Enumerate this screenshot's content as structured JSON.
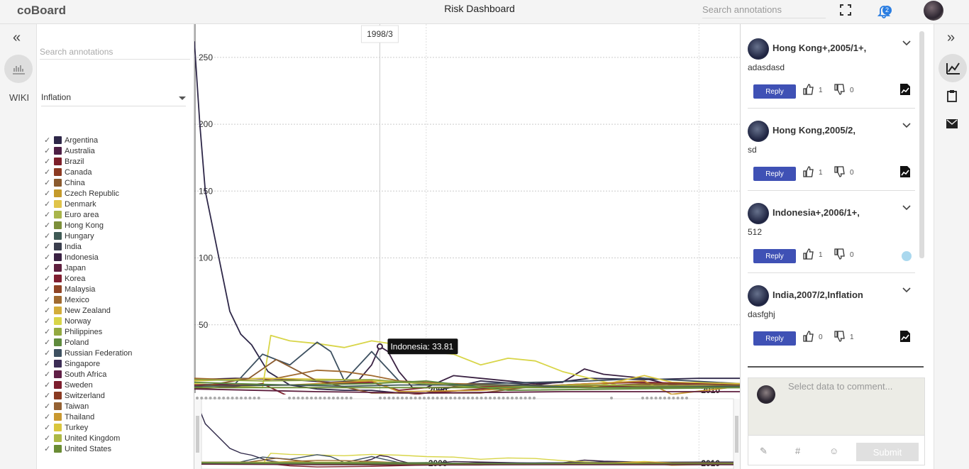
{
  "app": {
    "logo": "coBoard",
    "title": "Risk Dashboard"
  },
  "topbar": {
    "search_placeholder": "Search annotations",
    "notification_count": "2"
  },
  "left_rail": {
    "collapse_label": "«",
    "wiki_label": "WIKI"
  },
  "filter_panel": {
    "search_placeholder": "Search annotations",
    "selected_indicator": "Inflation",
    "countries": [
      {
        "name": "Argentina",
        "color": "#2e2748"
      },
      {
        "name": "Australia",
        "color": "#4e1f45"
      },
      {
        "name": "Brazil",
        "color": "#7d1f2a"
      },
      {
        "name": "Canada",
        "color": "#8c3a22"
      },
      {
        "name": "China",
        "color": "#8a5a2e"
      },
      {
        "name": "Czech Republic",
        "color": "#c49a2b"
      },
      {
        "name": "Denmark",
        "color": "#e0c44a"
      },
      {
        "name": "Euro area",
        "color": "#a9b54a"
      },
      {
        "name": "Hong Kong",
        "color": "#7c8f3a"
      },
      {
        "name": "Hungary",
        "color": "#3f5a55"
      },
      {
        "name": "India",
        "color": "#3a3e4d"
      },
      {
        "name": "Indonesia",
        "color": "#3a2142"
      },
      {
        "name": "Japan",
        "color": "#5e1f3e"
      },
      {
        "name": "Korea",
        "color": "#801e30"
      },
      {
        "name": "Malaysia",
        "color": "#8f4425"
      },
      {
        "name": "Mexico",
        "color": "#a06a30"
      },
      {
        "name": "New Zealand",
        "color": "#d3ad3a"
      },
      {
        "name": "Norway",
        "color": "#d8d548"
      },
      {
        "name": "Philippines",
        "color": "#93a940"
      },
      {
        "name": "Poland",
        "color": "#5f8a3c"
      },
      {
        "name": "Russian Federation",
        "color": "#3d5060"
      },
      {
        "name": "Singapore",
        "color": "#3c2d55"
      },
      {
        "name": "South Africa",
        "color": "#601f46"
      },
      {
        "name": "Sweden",
        "color": "#7d1e2e"
      },
      {
        "name": "Switzerland",
        "color": "#8a3a22"
      },
      {
        "name": "Taiwan",
        "color": "#946132"
      },
      {
        "name": "Thailand",
        "color": "#c9982f"
      },
      {
        "name": "Turkey",
        "color": "#d9c63d"
      },
      {
        "name": "United Kingdom",
        "color": "#acb845"
      },
      {
        "name": "United States",
        "color": "#6a8c34"
      }
    ]
  },
  "chart_data": {
    "type": "line",
    "y_ticks": [
      "50",
      "100",
      "150",
      "200",
      "250"
    ],
    "x_ticks": [
      "2000",
      "2010"
    ],
    "ylim": [
      0,
      260
    ],
    "xlim": [
      1991.5,
      2011.5
    ],
    "grid": true,
    "hover_label": "1998/3",
    "tooltip": "Indonesia: 33.81",
    "series": [
      {
        "name": "Argentina",
        "color": "#2e2748",
        "x": [
          1991.5,
          1991.7,
          1991.9,
          1992.1,
          1992.4,
          1992.8,
          1993.2,
          1993.6,
          1994.2,
          1995,
          1996,
          1997,
          1998,
          1999,
          2000,
          2002,
          2004,
          2006,
          2008,
          2010,
          2011.5
        ],
        "y": [
          262,
          200,
          150,
          130,
          100,
          60,
          43,
          35,
          15,
          5,
          2,
          1,
          1,
          -1,
          -1,
          8,
          5,
          10,
          9,
          10,
          10
        ]
      },
      {
        "name": "Indonesia",
        "color": "#3a2142",
        "x": [
          1991.5,
          1993,
          1995,
          1996.5,
          1997.5,
          1998,
          1998.3,
          1998.6,
          1999,
          1999.5,
          2000,
          2001,
          2002,
          2004,
          2005,
          2005.8,
          2006.5,
          2008,
          2009,
          2010,
          2011.5
        ],
        "y": [
          9,
          10,
          9,
          7,
          8,
          20,
          33.81,
          30,
          15,
          3,
          3,
          12,
          10,
          6,
          7,
          17,
          13,
          10,
          5,
          4,
          5
        ]
      },
      {
        "name": "Norway",
        "color": "#d8d548",
        "x": [
          1991.5,
          1993,
          1994,
          1994.3,
          1995,
          1996,
          1997,
          1998,
          1999,
          2000,
          2001,
          2002,
          2003,
          2004,
          2005,
          2006,
          2007,
          2008,
          2010,
          2011.5
        ],
        "y": [
          6,
          4,
          3,
          42,
          38,
          36,
          33,
          38,
          35,
          30,
          28,
          20,
          25,
          23,
          15,
          10,
          5,
          5,
          7,
          5
        ]
      },
      {
        "name": "Russian Federation",
        "color": "#3d5060",
        "x": [
          1991.5,
          1993,
          1994,
          1995,
          1996,
          1996.5,
          1997,
          1998,
          1999,
          2000,
          2002,
          2004,
          2006,
          2008,
          2011.5
        ],
        "y": [
          5,
          6,
          28,
          20,
          37,
          30,
          8,
          30,
          8,
          5,
          6,
          7,
          8,
          10,
          6
        ]
      },
      {
        "name": "Mexico",
        "color": "#a06a30",
        "x": [
          1991.5,
          1994,
          1995,
          1996,
          1997,
          1998,
          1999,
          2001,
          2003,
          2006,
          2011.5
        ],
        "y": [
          10,
          8,
          12,
          16,
          15,
          12,
          8,
          6,
          5,
          4,
          4
        ]
      },
      {
        "name": "Turkey",
        "color": "#d9c63d",
        "x": [
          1991.5,
          1994,
          1997,
          2000,
          2003,
          2006,
          2008,
          2009,
          2011.5
        ],
        "y": [
          8,
          10,
          9,
          6,
          4,
          3,
          12,
          7,
          6
        ]
      },
      {
        "name": "Brazil",
        "color": "#7d1f2a",
        "x": [
          1991.5,
          1993,
          1994,
          1995,
          1996,
          1998,
          2000,
          2002,
          2004,
          2006,
          2008,
          2011.5
        ],
        "y": [
          2,
          4,
          6,
          -4,
          -8,
          -6,
          -1,
          2,
          4,
          6,
          7,
          5
        ]
      },
      {
        "name": "Korea",
        "color": "#801e30",
        "x": [
          1991.5,
          1995,
          1998,
          1999,
          2000,
          2003,
          2006,
          2008,
          2011.5
        ],
        "y": [
          5,
          5,
          7,
          1,
          3,
          4,
          3,
          5,
          4
        ]
      },
      {
        "name": "Thailand",
        "color": "#c9982f",
        "x": [
          1991.5,
          1995,
          1998,
          1999,
          2002,
          2005,
          2008,
          2009,
          2011.5
        ],
        "y": [
          4,
          5,
          8,
          0,
          1,
          5,
          8,
          -2,
          4
        ]
      },
      {
        "name": "China",
        "color": "#8a5a2e",
        "x": [
          1991.5,
          1993.5,
          1994.5,
          1996,
          1998,
          2002,
          2004,
          2007,
          2008,
          2011.5
        ],
        "y": [
          3,
          10,
          24,
          8,
          -1,
          -1,
          4,
          5,
          6,
          5
        ]
      },
      {
        "name": "Philippines",
        "color": "#93a940",
        "x": [
          1991.5,
          1994,
          1998,
          2002,
          2006,
          2011.5
        ],
        "y": [
          9,
          8,
          9,
          3,
          5,
          4
        ]
      },
      {
        "name": "Poland",
        "color": "#5f8a3c",
        "x": [
          1991.5,
          1993,
          1995,
          1998,
          2000,
          2003,
          2011.5
        ],
        "y": [
          7,
          6,
          5,
          6,
          8,
          1,
          3
        ]
      },
      {
        "name": "Hungary",
        "color": "#3f5a55",
        "x": [
          1991.5,
          1995,
          1997,
          1999,
          2003,
          2006,
          2011.5
        ],
        "y": [
          4,
          5,
          4,
          5,
          5,
          3,
          4
        ]
      },
      {
        "name": "United States",
        "color": "#6a8c34",
        "x": [
          1991.5,
          2011.5
        ],
        "y": [
          3,
          3
        ]
      },
      {
        "name": "Japan",
        "color": "#5e1f3e",
        "x": [
          1991.5,
          1996,
          2000,
          2005,
          2011.5
        ],
        "y": [
          2,
          0,
          -1,
          0,
          0
        ]
      }
    ]
  },
  "comments": [
    {
      "title": "Hong Kong+,2005/1+,",
      "body": "adasdasd",
      "reply_label": "Reply",
      "likes": "1",
      "dislikes": "0",
      "attachment": "doc"
    },
    {
      "title": "Hong Kong,2005/2,",
      "body": "sd",
      "reply_label": "Reply",
      "likes": "1",
      "dislikes": "0",
      "attachment": "doc"
    },
    {
      "title": "Indonesia+,2006/1+,",
      "body": "512",
      "reply_label": "Reply",
      "likes": "1",
      "dislikes": "0",
      "attachment": "dot"
    },
    {
      "title": "India,2007/2,Inflation",
      "body": "dasfghj",
      "reply_label": "Reply",
      "likes": "0",
      "dislikes": "1",
      "attachment": "doc"
    }
  ],
  "composer": {
    "placeholder": "Select data to comment...",
    "submit_label": "Submit",
    "tools": [
      "✎",
      "#",
      "☺"
    ]
  },
  "right_rail": {
    "collapse_label": "»"
  }
}
